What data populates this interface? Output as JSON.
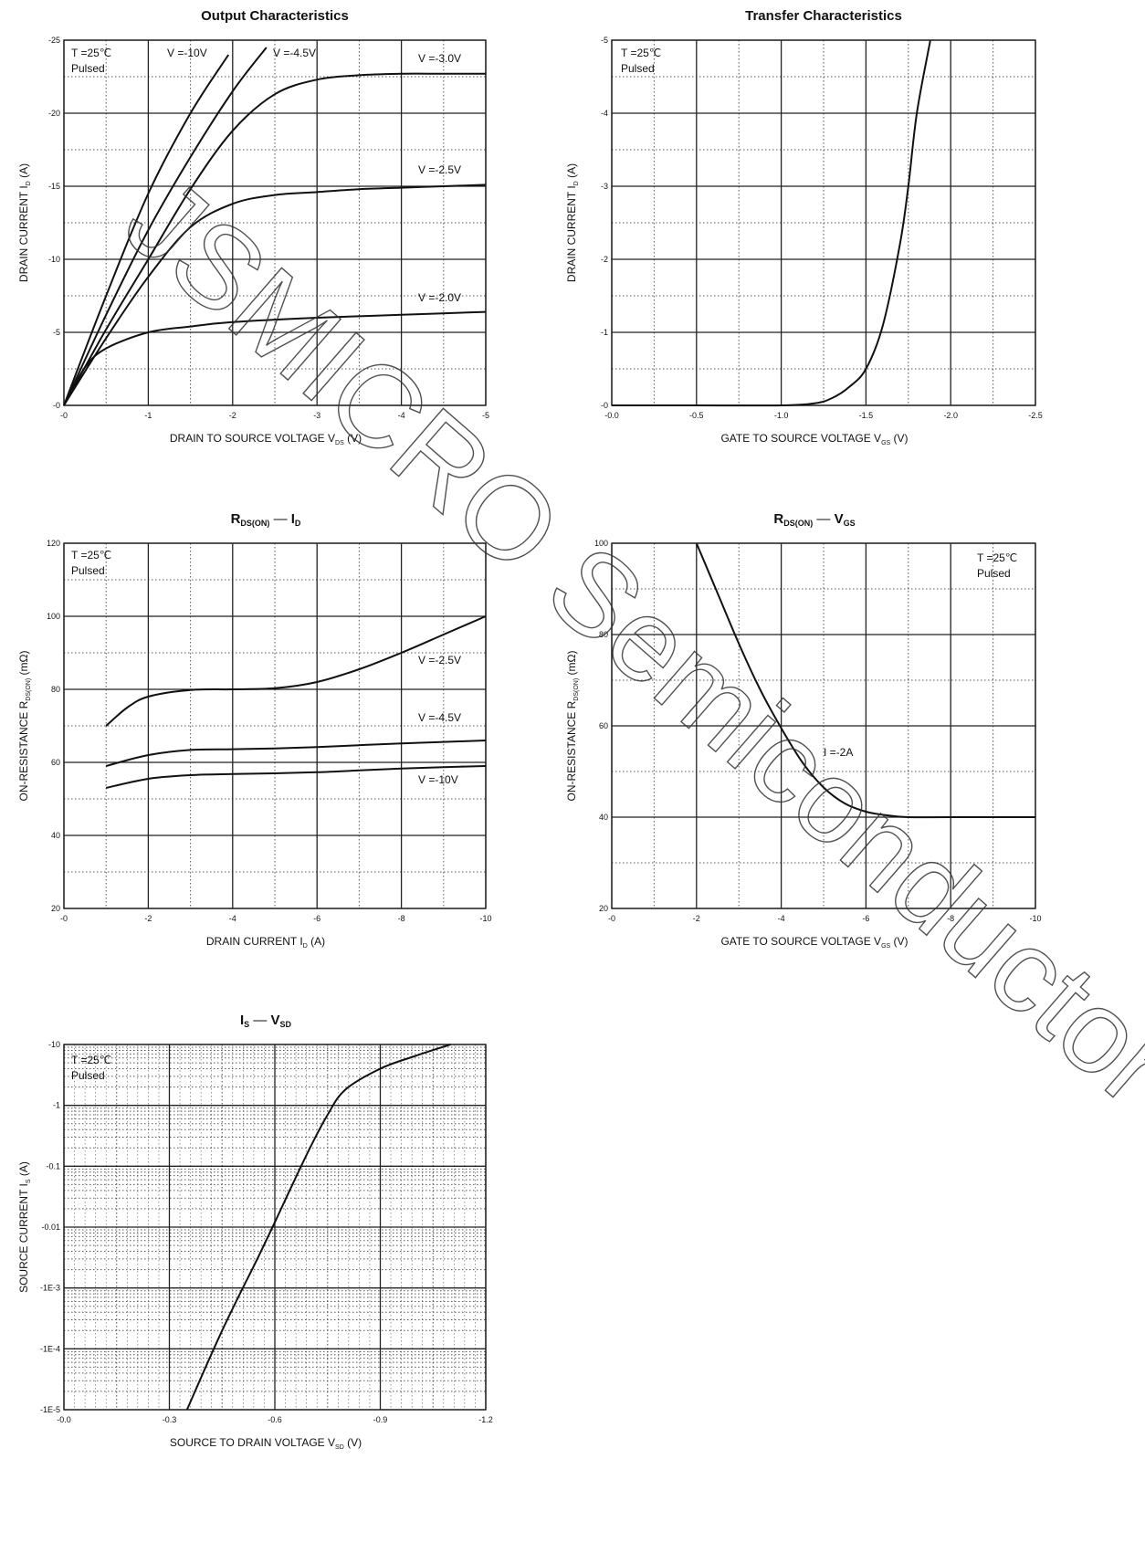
{
  "watermark": "JSMICRO Semiconductor",
  "chart_data": [
    {
      "id": "output",
      "type": "line",
      "title": "Output Characteristics",
      "xlabel": "DRAIN TO SOURCE VOLTAGE",
      "xlabel_sym": "V",
      "xlabel_sub": "DS",
      "xlabel_unit": "(V)",
      "ylabel": "DRAIN CURRENT",
      "ylabel_sym": "I",
      "ylabel_sub": "D",
      "ylabel_unit": "(A)",
      "xlim": [
        0,
        5
      ],
      "ylim": [
        0,
        25
      ],
      "xticks": [
        0,
        1,
        2,
        3,
        4,
        5
      ],
      "xtick_labels": [
        "-0",
        "-1",
        "-2",
        "-3",
        "-4",
        "-5"
      ],
      "yticks": [
        0,
        5,
        10,
        15,
        20,
        25
      ],
      "ytick_labels": [
        "-0",
        "-5",
        "-10",
        "-15",
        "-20",
        "-25"
      ],
      "conditions": [
        "T =25℃",
        "Pulsed"
      ],
      "series": [
        {
          "name": "V  =-10V",
          "x": [
            0,
            0.5,
            1.0,
            1.5,
            1.95
          ],
          "y": [
            0,
            7.5,
            14.5,
            20.0,
            24.0
          ]
        },
        {
          "name": "V  =-4.5V",
          "x": [
            0,
            0.5,
            1.0,
            1.5,
            2.0,
            2.4
          ],
          "y": [
            0,
            6.2,
            12.0,
            17.0,
            21.5,
            24.5
          ]
        },
        {
          "name": "V  =-3.0V",
          "x": [
            0,
            0.5,
            1.0,
            1.5,
            2.0,
            2.5,
            3.0,
            3.5,
            4.0,
            4.5,
            5.0
          ],
          "y": [
            0,
            5.2,
            10.0,
            14.8,
            18.8,
            21.3,
            22.3,
            22.6,
            22.7,
            22.7,
            22.7
          ]
        },
        {
          "name": "V  =-2.5V",
          "x": [
            0,
            0.5,
            1.0,
            1.5,
            2.0,
            2.5,
            3.0,
            3.5,
            4.0,
            4.5,
            5.0
          ],
          "y": [
            0,
            4.6,
            8.8,
            12.2,
            13.8,
            14.4,
            14.6,
            14.8,
            14.9,
            15.0,
            15.1
          ]
        },
        {
          "name": "V  =-2.0V",
          "x": [
            0,
            0.25,
            0.5,
            1.0,
            1.5,
            2.0,
            3.0,
            4.0,
            5.0
          ],
          "y": [
            0,
            2.6,
            3.9,
            5.0,
            5.4,
            5.7,
            6.0,
            6.2,
            6.4
          ]
        }
      ]
    },
    {
      "id": "transfer",
      "type": "line",
      "title": "Transfer Characteristics",
      "xlabel": "GATE TO SOURCE VOLTAGE",
      "xlabel_sym": "V",
      "xlabel_sub": "GS",
      "xlabel_unit": "(V)",
      "ylabel": "DRAIN CURRENT",
      "ylabel_sym": "I",
      "ylabel_sub": "D",
      "ylabel_unit": "(A)",
      "xlim": [
        0,
        2.5
      ],
      "ylim": [
        0,
        5
      ],
      "xticks": [
        0,
        0.5,
        1.0,
        1.5,
        2.0,
        2.5
      ],
      "xtick_labels": [
        "-0.0",
        "-0.5",
        "-1.0",
        "-1.5",
        "-2.0",
        "-2.5"
      ],
      "yticks": [
        0,
        1,
        2,
        3,
        4,
        5
      ],
      "ytick_labels": [
        "-0",
        "-1",
        "-2",
        "-3",
        "-4",
        "-5"
      ],
      "conditions": [
        "T =25℃",
        "Pulsed"
      ],
      "series": [
        {
          "name": "",
          "x": [
            0,
            0.5,
            1.0,
            1.2,
            1.3,
            1.4,
            1.5,
            1.6,
            1.7,
            1.75,
            1.8,
            1.88
          ],
          "y": [
            0,
            0,
            0.0,
            0.03,
            0.1,
            0.25,
            0.5,
            1.1,
            2.2,
            3.0,
            4.0,
            5.0
          ]
        }
      ]
    },
    {
      "id": "rds-id",
      "type": "line",
      "title": "R",
      "title_sub": "DS(ON)",
      "title_dash": "—",
      "title_end": "I",
      "title_end_sub": "D",
      "xlabel": "DRAIN CURRENT",
      "xlabel_sym": "I",
      "xlabel_sub": "D",
      "xlabel_unit": "(A)",
      "ylabel": "ON-RESISTANCE",
      "ylabel_sym": "R",
      "ylabel_sub": "DS(ON)",
      "ylabel_unit": "(mΩ)",
      "xlim": [
        0,
        10
      ],
      "ylim": [
        20,
        120
      ],
      "xticks": [
        0,
        2,
        4,
        6,
        8,
        10
      ],
      "xtick_labels": [
        "-0",
        "-2",
        "-4",
        "-6",
        "-8",
        "-10"
      ],
      "yticks": [
        20,
        40,
        60,
        80,
        100,
        120
      ],
      "ytick_labels": [
        "20",
        "40",
        "60",
        "80",
        "100",
        "120"
      ],
      "conditions": [
        "T =25℃",
        "Pulsed"
      ],
      "series": [
        {
          "name": "V  =-2.5V",
          "x": [
            1,
            1.5,
            2,
            3,
            4,
            5,
            6,
            7,
            8,
            9,
            10
          ],
          "y": [
            70,
            75,
            78,
            79.8,
            80,
            80.3,
            82,
            85.5,
            90,
            95,
            100
          ]
        },
        {
          "name": "V  =-4.5V",
          "x": [
            1,
            2,
            3,
            4,
            5,
            6,
            7,
            8,
            9,
            10
          ],
          "y": [
            59,
            62,
            63.4,
            63.6,
            63.8,
            64.2,
            64.7,
            65.2,
            65.6,
            66
          ]
        },
        {
          "name": "V  =-10V",
          "x": [
            1,
            2,
            3,
            4,
            5,
            6,
            7,
            8,
            9,
            10
          ],
          "y": [
            53,
            55.5,
            56.5,
            56.8,
            57,
            57.3,
            57.8,
            58.3,
            58.7,
            59
          ]
        }
      ]
    },
    {
      "id": "rds-vgs",
      "type": "line",
      "title": "R",
      "title_sub": "DS(ON)",
      "title_dash": "—",
      "title_end": "V",
      "title_end_sub": "GS",
      "xlabel": "GATE TO SOURCE VOLTAGE",
      "xlabel_sym": "V",
      "xlabel_sub": "GS",
      "xlabel_unit": "(V)",
      "ylabel": "ON-RESISTANCE",
      "ylabel_sym": "R",
      "ylabel_sub": "DS(ON)",
      "ylabel_unit": "(mΩ)",
      "xlim": [
        0,
        10
      ],
      "ylim": [
        20,
        100
      ],
      "xticks": [
        0,
        2,
        4,
        6,
        8,
        10
      ],
      "xtick_labels": [
        "-0",
        "-2",
        "-4",
        "-6",
        "-8",
        "-10"
      ],
      "yticks": [
        20,
        40,
        60,
        80,
        100
      ],
      "ytick_labels": [
        "20",
        "40",
        "60",
        "80",
        "100"
      ],
      "conditions": [
        "T =25℃",
        "Pulsed"
      ],
      "annotation": "I =-2A",
      "series": [
        {
          "name": "",
          "x": [
            2,
            2.5,
            3,
            3.5,
            4,
            4.5,
            5,
            5.5,
            6,
            6.5,
            7,
            8,
            10
          ],
          "y": [
            100,
            89,
            78,
            68,
            59.5,
            52,
            46.5,
            43,
            41.2,
            40.4,
            40,
            40,
            40
          ]
        }
      ]
    },
    {
      "id": "is-vsd",
      "type": "line",
      "title": "I",
      "title_sub": "S",
      "title_dash": "—",
      "title_end": "V",
      "title_end_sub": "SD",
      "xlabel": "SOURCE TO DRAIN VOLTAGE",
      "xlabel_sym": "V",
      "xlabel_sub": "SD",
      "xlabel_unit": "(V)",
      "ylabel": "SOURCE CURRENT",
      "ylabel_sym": "I",
      "ylabel_sub": "S",
      "ylabel_unit": "(A)",
      "log_y": true,
      "xlim": [
        0,
        1.2
      ],
      "ylim": [
        1e-05,
        10
      ],
      "xticks": [
        0,
        0.3,
        0.6,
        0.9,
        1.2
      ],
      "xtick_labels": [
        "-0.0",
        "-0.3",
        "-0.6",
        "-0.9",
        "-1.2"
      ],
      "yticks": [
        1e-05,
        0.0001,
        0.001,
        0.01,
        0.1,
        1,
        10
      ],
      "ytick_labels": [
        "-1E-5",
        "-1E-4",
        "-1E-3",
        "-0.01",
        "-0.1",
        "-1",
        "-10"
      ],
      "conditions": [
        "T =25℃",
        "Pulsed"
      ],
      "series": [
        {
          "name": "",
          "x": [
            0.35,
            0.45,
            0.55,
            0.6,
            0.65,
            0.7,
            0.75,
            0.8,
            0.9,
            1.0,
            1.1
          ],
          "y": [
            1e-05,
            0.0002,
            0.003,
            0.012,
            0.05,
            0.2,
            0.7,
            1.8,
            4.0,
            6.5,
            10
          ]
        }
      ]
    }
  ]
}
